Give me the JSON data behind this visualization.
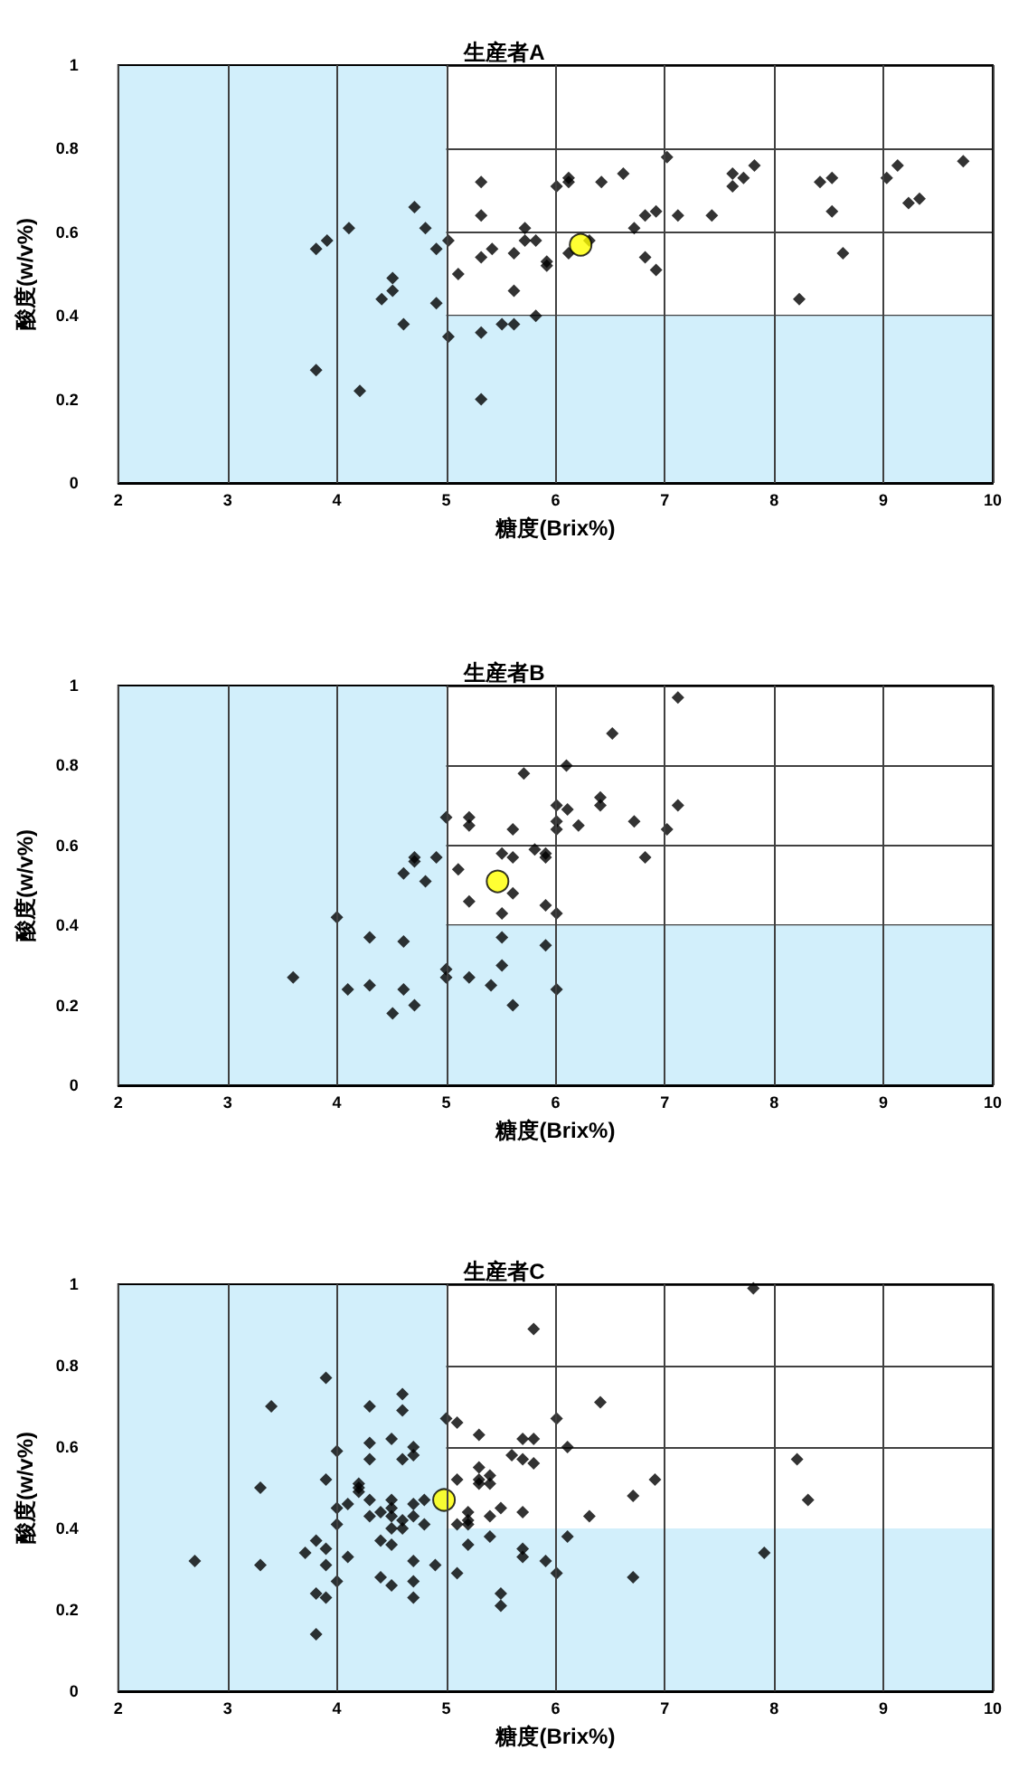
{
  "chart_data": [
    {
      "type": "scatter",
      "title": "生産者A",
      "xlabel": "糖度(Brix%)",
      "ylabel": "酸度(w/v%)",
      "xlim": [
        2,
        10
      ],
      "ylim": [
        0,
        1
      ],
      "xticks": [
        2,
        3,
        4,
        5,
        6,
        7,
        8,
        9,
        10
      ],
      "yticks": [
        0,
        0.2,
        0.4,
        0.6,
        0.8,
        1
      ],
      "grid": true,
      "bands": [
        {
          "axis": "x",
          "from": 2,
          "to": 5,
          "color": "#d2effb"
        },
        {
          "axis": "y",
          "from": 0,
          "to": 0.4,
          "color": "#d2effb"
        }
      ],
      "series": [
        {
          "color": "#000000",
          "marker": "diamond",
          "x": [
            3.81,
            3.91,
            4.11,
            3.81,
            4.21,
            4.71,
            4.81,
            4.91,
            5.02,
            4.51,
            4.51,
            4.41,
            4.61,
            4.91,
            5.02,
            5.11,
            5.32,
            5.32,
            5.32,
            5.32,
            5.32,
            5.42,
            5.51,
            5.62,
            5.62,
            5.62,
            5.72,
            5.72,
            5.82,
            5.82,
            5.92,
            5.92,
            6.01,
            6.12,
            6.12,
            6.12,
            6.31,
            6.42,
            6.62,
            6.72,
            6.82,
            6.92,
            6.82,
            6.92,
            7.02,
            7.12,
            7.43,
            7.62,
            7.62,
            7.72,
            7.82,
            8.23,
            8.42,
            8.53,
            8.53,
            8.63,
            9.03,
            9.13,
            9.23,
            9.33,
            9.73
          ],
          "values": [
            0.56,
            0.58,
            0.61,
            0.27,
            0.22,
            0.66,
            0.61,
            0.56,
            0.58,
            0.49,
            0.46,
            0.44,
            0.38,
            0.43,
            0.35,
            0.5,
            0.72,
            0.64,
            0.54,
            0.36,
            0.2,
            0.56,
            0.38,
            0.38,
            0.55,
            0.46,
            0.61,
            0.58,
            0.58,
            0.4,
            0.53,
            0.52,
            0.71,
            0.73,
            0.72,
            0.55,
            0.58,
            0.72,
            0.74,
            0.61,
            0.64,
            0.65,
            0.54,
            0.51,
            0.78,
            0.64,
            0.64,
            0.74,
            0.71,
            0.73,
            0.76,
            0.44,
            0.72,
            0.73,
            0.65,
            0.55,
            0.73,
            0.76,
            0.67,
            0.68,
            0.77
          ]
        },
        {
          "color": "#ffff00",
          "marker": "circle",
          "x": [
            6.23
          ],
          "values": [
            0.57
          ]
        }
      ]
    },
    {
      "type": "scatter",
      "title": "生産者B",
      "xlabel": "糖度(Brix%)",
      "ylabel": "酸度(w/v%)",
      "xlim": [
        2,
        10
      ],
      "ylim": [
        0,
        1
      ],
      "xticks": [
        2,
        3,
        4,
        5,
        6,
        7,
        8,
        9,
        10
      ],
      "yticks": [
        0,
        0.2,
        0.4,
        0.6,
        0.8,
        1
      ],
      "grid": true,
      "bands": [
        {
          "axis": "x",
          "from": 2,
          "to": 5,
          "color": "#d2effb"
        },
        {
          "axis": "y",
          "from": 0,
          "to": 0.4,
          "color": "#d2effb"
        }
      ],
      "series": [
        {
          "color": "#000000",
          "marker": "diamond",
          "x": [
            3.6,
            4.0,
            4.1,
            4.3,
            4.3,
            4.61,
            4.61,
            4.61,
            4.51,
            4.71,
            4.71,
            4.71,
            4.81,
            4.91,
            5.0,
            5.0,
            5.0,
            5.11,
            5.21,
            5.21,
            5.21,
            5.21,
            5.41,
            5.51,
            5.51,
            5.51,
            5.51,
            5.61,
            5.61,
            5.61,
            5.61,
            5.71,
            5.81,
            5.91,
            5.91,
            5.91,
            5.91,
            6.01,
            6.01,
            6.01,
            6.01,
            6.01,
            6.1,
            6.11,
            6.21,
            6.41,
            6.41,
            6.52,
            6.72,
            6.82,
            7.02,
            7.12,
            7.12
          ],
          "values": [
            0.27,
            0.42,
            0.24,
            0.37,
            0.25,
            0.53,
            0.36,
            0.24,
            0.18,
            0.57,
            0.56,
            0.2,
            0.51,
            0.57,
            0.67,
            0.29,
            0.27,
            0.54,
            0.67,
            0.65,
            0.46,
            0.27,
            0.25,
            0.58,
            0.43,
            0.37,
            0.3,
            0.57,
            0.48,
            0.2,
            0.64,
            0.78,
            0.59,
            0.58,
            0.57,
            0.45,
            0.35,
            0.7,
            0.66,
            0.64,
            0.43,
            0.24,
            0.8,
            0.69,
            0.65,
            0.72,
            0.7,
            0.88,
            0.66,
            0.57,
            0.64,
            0.97,
            0.7
          ]
        },
        {
          "color": "#ffff00",
          "marker": "circle",
          "x": [
            5.47
          ],
          "values": [
            0.51
          ]
        }
      ]
    },
    {
      "type": "scatter",
      "title": "生産者C",
      "xlabel": "糖度(Brix%)",
      "ylabel": "酸度(w/v%)",
      "xlim": [
        2,
        10
      ],
      "ylim": [
        0,
        1
      ],
      "xticks": [
        2,
        3,
        4,
        5,
        6,
        7,
        8,
        9,
        10
      ],
      "yticks": [
        0,
        0.2,
        0.4,
        0.6,
        0.8,
        1
      ],
      "grid": true,
      "bands": [
        {
          "axis": "x",
          "from": 2,
          "to": 5,
          "color": "#d2effb"
        },
        {
          "axis": "y",
          "from": 0,
          "to": 0.4,
          "color": "#d2effb"
        }
      ],
      "series": [
        {
          "color": "#000000",
          "marker": "diamond",
          "x": [
            2.7,
            3.3,
            3.3,
            3.4,
            3.81,
            3.81,
            3.81,
            3.71,
            3.9,
            3.9,
            3.9,
            3.9,
            3.9,
            4.0,
            4.0,
            4.0,
            4.0,
            4.1,
            4.1,
            4.2,
            4.2,
            4.2,
            4.3,
            4.3,
            4.3,
            4.3,
            4.3,
            4.4,
            4.4,
            4.4,
            4.5,
            4.5,
            4.5,
            4.5,
            4.5,
            4.5,
            4.5,
            4.6,
            4.6,
            4.6,
            4.6,
            4.6,
            4.7,
            4.7,
            4.7,
            4.7,
            4.7,
            4.7,
            4.7,
            4.8,
            4.8,
            4.9,
            5.0,
            5.1,
            5.1,
            5.1,
            5.1,
            5.2,
            5.2,
            5.2,
            5.2,
            5.3,
            5.3,
            5.3,
            5.3,
            5.4,
            5.4,
            5.4,
            5.4,
            5.5,
            5.5,
            5.5,
            5.6,
            5.7,
            5.7,
            5.7,
            5.7,
            5.7,
            5.8,
            5.8,
            5.8,
            5.91,
            6.01,
            6.01,
            6.11,
            6.41,
            6.31,
            6.71,
            6.91,
            6.11,
            6.71,
            7.81,
            7.91,
            8.21,
            8.31
          ],
          "values": [
            0.32,
            0.31,
            0.5,
            0.7,
            0.14,
            0.24,
            0.37,
            0.34,
            0.77,
            0.52,
            0.35,
            0.31,
            0.23,
            0.59,
            0.45,
            0.41,
            0.27,
            0.46,
            0.33,
            0.51,
            0.5,
            0.49,
            0.7,
            0.61,
            0.57,
            0.47,
            0.43,
            0.44,
            0.37,
            0.28,
            0.62,
            0.47,
            0.45,
            0.43,
            0.4,
            0.36,
            0.26,
            0.73,
            0.69,
            0.57,
            0.42,
            0.4,
            0.6,
            0.58,
            0.46,
            0.43,
            0.32,
            0.27,
            0.23,
            0.47,
            0.41,
            0.31,
            0.67,
            0.66,
            0.52,
            0.41,
            0.29,
            0.44,
            0.42,
            0.41,
            0.36,
            0.63,
            0.55,
            0.52,
            0.51,
            0.53,
            0.51,
            0.43,
            0.38,
            0.45,
            0.24,
            0.21,
            0.58,
            0.62,
            0.57,
            0.44,
            0.35,
            0.33,
            0.89,
            0.62,
            0.56,
            0.32,
            0.67,
            0.29,
            0.6,
            0.71,
            0.43,
            0.48,
            0.52,
            0.38,
            0.28,
            0.99,
            0.34,
            0.57,
            0.47
          ]
        },
        {
          "color": "#ffff00",
          "marker": "circle",
          "x": [
            4.98
          ],
          "values": [
            0.47
          ]
        }
      ]
    }
  ]
}
